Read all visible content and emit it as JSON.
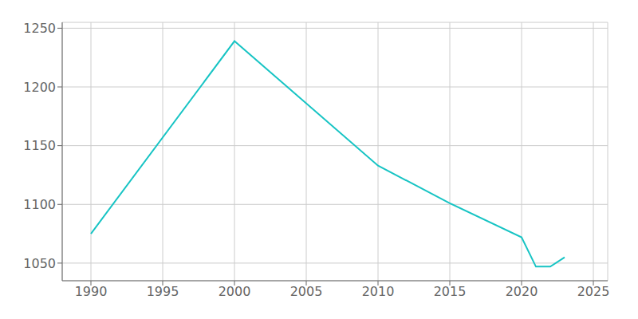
{
  "chart_data": {
    "type": "line",
    "x": [
      1990,
      2000,
      2010,
      2015,
      2020,
      2021,
      2022,
      2023
    ],
    "values": [
      1075,
      1239,
      1133,
      1101,
      1072,
      1047,
      1047,
      1055
    ],
    "color": "#17c4c4",
    "xlim": [
      1988,
      2026
    ],
    "ylim": [
      1035,
      1255
    ],
    "xticks": [
      1990,
      1995,
      2000,
      2005,
      2010,
      2015,
      2020,
      2025
    ],
    "yticks": [
      1050,
      1100,
      1150,
      1200,
      1250
    ],
    "grid": true
  }
}
